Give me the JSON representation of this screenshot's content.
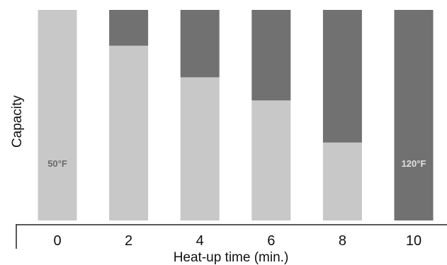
{
  "chart_data": {
    "type": "bar",
    "stacked": true,
    "categories": [
      "0",
      "2",
      "4",
      "6",
      "8",
      "10"
    ],
    "xlabel": "Heat-up time (min.)",
    "ylabel": "Capacity",
    "ylim": [
      0,
      100
    ],
    "grid": false,
    "series": [
      {
        "values": [
          100,
          83,
          68,
          57,
          37,
          0
        ],
        "color": "#c8c8c8"
      },
      {
        "values": [
          0,
          17,
          32,
          43,
          63,
          100
        ],
        "color": "#717171"
      }
    ],
    "annotations": [
      {
        "text": "50°F",
        "category": "0",
        "color": "#6b6b6b"
      },
      {
        "text": "120°F",
        "category": "10",
        "color": "#e0e0e0"
      }
    ]
  }
}
